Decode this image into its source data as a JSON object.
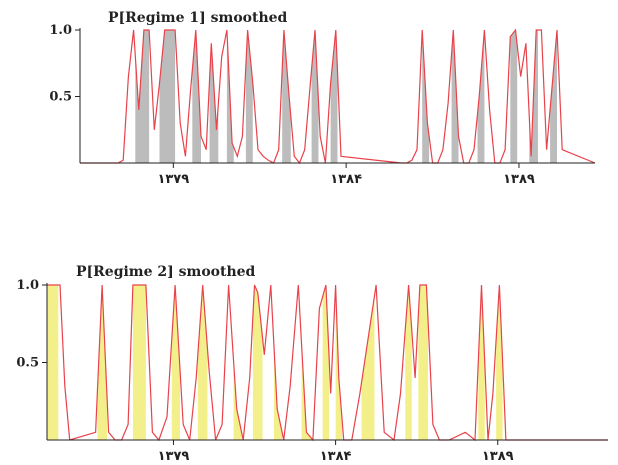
{
  "chart_data": [
    {
      "type": "line",
      "title": "P[Regime 1] smoothed",
      "yticks": [
        {
          "value": 1.0,
          "label": "1.0"
        },
        {
          "value": 0.5,
          "label": "0.5"
        }
      ],
      "xticks": [
        {
          "value": 1379,
          "label": "۱۳۷۹"
        },
        {
          "value": 1384,
          "label": "۱۳۸۴"
        },
        {
          "value": 1389,
          "label": "۱۳۸۹"
        }
      ],
      "xlim": [
        1376.3,
        1391.2
      ],
      "ylim": [
        0,
        1
      ],
      "series_color": "#e8424a",
      "fill_color": "#bcbcbc",
      "regimes": [
        [
          1377.9,
          1378.3
        ],
        [
          1378.6,
          1379.05
        ],
        [
          1379.55,
          1379.8
        ],
        [
          1380.05,
          1380.3
        ],
        [
          1380.55,
          1380.75
        ],
        [
          1381.1,
          1381.3
        ],
        [
          1382.15,
          1382.4
        ],
        [
          1383.0,
          1383.2
        ],
        [
          1383.55,
          1383.75
        ],
        [
          1386.2,
          1386.4
        ],
        [
          1387.05,
          1387.25
        ],
        [
          1387.8,
          1388.0
        ],
        [
          1388.75,
          1388.95
        ],
        [
          1389.3,
          1389.55
        ],
        [
          1389.9,
          1390.1
        ]
      ],
      "x": [
        1376.3,
        1377.4,
        1377.55,
        1377.7,
        1377.85,
        1378.0,
        1378.15,
        1378.3,
        1378.45,
        1378.6,
        1378.75,
        1378.9,
        1379.05,
        1379.2,
        1379.35,
        1379.5,
        1379.65,
        1379.8,
        1379.95,
        1380.1,
        1380.25,
        1380.4,
        1380.55,
        1380.7,
        1380.85,
        1381.0,
        1381.15,
        1381.3,
        1381.45,
        1381.6,
        1381.75,
        1381.9,
        1382.05,
        1382.2,
        1382.35,
        1382.5,
        1382.65,
        1382.8,
        1382.95,
        1383.1,
        1383.25,
        1383.4,
        1383.55,
        1383.7,
        1383.85,
        1385.6,
        1385.75,
        1385.9,
        1386.05,
        1386.2,
        1386.35,
        1386.5,
        1386.65,
        1386.8,
        1386.95,
        1387.1,
        1387.25,
        1387.4,
        1387.55,
        1387.7,
        1387.85,
        1388.0,
        1388.15,
        1388.3,
        1388.45,
        1388.6,
        1388.75,
        1388.9,
        1389.05,
        1389.2,
        1389.35,
        1389.5,
        1389.65,
        1389.8,
        1389.95,
        1390.1,
        1390.25,
        1391.2
      ],
      "y": [
        0,
        0,
        0.02,
        0.65,
        1.0,
        0.4,
        1.0,
        1.0,
        0.25,
        0.6,
        1.0,
        1.0,
        1.0,
        0.3,
        0.05,
        0.55,
        1.0,
        0.2,
        0.1,
        0.9,
        0.25,
        0.8,
        1.0,
        0.15,
        0.05,
        0.2,
        1.0,
        0.6,
        0.1,
        0.05,
        0.02,
        0.0,
        0.1,
        1.0,
        0.5,
        0.05,
        0.0,
        0.1,
        0.55,
        1.0,
        0.2,
        0.0,
        0.6,
        1.0,
        0.05,
        0.0,
        0.0,
        0.02,
        0.1,
        1.0,
        0.3,
        0.0,
        0.0,
        0.1,
        0.45,
        1.0,
        0.2,
        0.0,
        0.0,
        0.1,
        0.5,
        1.0,
        0.4,
        0.0,
        0.0,
        0.1,
        0.95,
        1.0,
        0.65,
        0.9,
        0.05,
        1.0,
        1.0,
        0.1,
        0.55,
        1.0,
        0.1,
        0.0
      ]
    },
    {
      "type": "line",
      "title": "P[Regime 2] smoothed",
      "yticks": [
        {
          "value": 1.0,
          "label": "1.0"
        },
        {
          "value": 0.5,
          "label": "0.5"
        }
      ],
      "xticks": [
        {
          "value": 1379,
          "label": "۱۳۷۹"
        },
        {
          "value": 1384,
          "label": "۱۳۸۴"
        },
        {
          "value": 1389,
          "label": "۱۳۸۹"
        }
      ],
      "xlim": [
        1375.1,
        1392.4
      ],
      "ylim": [
        0,
        1
      ],
      "series_color": "#e8424a",
      "fill_color": "#f3f08c",
      "regimes": [
        [
          1375.1,
          1375.45
        ],
        [
          1376.65,
          1376.95
        ],
        [
          1377.75,
          1378.15
        ],
        [
          1378.95,
          1379.2
        ],
        [
          1379.75,
          1380.05
        ],
        [
          1380.85,
          1381.1
        ],
        [
          1381.45,
          1381.75
        ],
        [
          1382.1,
          1382.35
        ],
        [
          1382.95,
          1383.25
        ],
        [
          1383.6,
          1383.8
        ],
        [
          1384.0,
          1384.2
        ],
        [
          1384.8,
          1385.2
        ],
        [
          1386.15,
          1386.35
        ],
        [
          1386.55,
          1386.85
        ],
        [
          1388.4,
          1388.6
        ],
        [
          1388.95,
          1389.15
        ]
      ],
      "x": [
        1375.1,
        1375.5,
        1375.65,
        1375.8,
        1376.6,
        1376.8,
        1377.0,
        1377.2,
        1377.4,
        1377.6,
        1377.75,
        1378.15,
        1378.35,
        1378.55,
        1378.8,
        1379.05,
        1379.3,
        1379.5,
        1379.7,
        1379.9,
        1380.1,
        1380.3,
        1380.5,
        1380.7,
        1380.95,
        1381.15,
        1381.35,
        1381.5,
        1381.6,
        1381.8,
        1382.0,
        1382.2,
        1382.4,
        1382.6,
        1382.85,
        1383.1,
        1383.3,
        1383.5,
        1383.7,
        1383.85,
        1384.0,
        1384.1,
        1384.25,
        1384.5,
        1384.75,
        1385.25,
        1385.5,
        1385.8,
        1386.0,
        1386.25,
        1386.45,
        1386.6,
        1386.8,
        1387.0,
        1387.2,
        1387.5,
        1388.0,
        1388.3,
        1388.5,
        1388.7,
        1388.85,
        1389.05,
        1389.25,
        1389.5,
        1391.4,
        1392.4
      ],
      "y": [
        1.0,
        1.0,
        0.35,
        0.0,
        0.05,
        1.0,
        0.05,
        0.0,
        0.0,
        0.1,
        1.0,
        1.0,
        0.05,
        0.0,
        0.15,
        1.0,
        0.1,
        0.0,
        0.4,
        1.0,
        0.45,
        0.0,
        0.1,
        1.0,
        0.2,
        0.0,
        0.4,
        1.0,
        0.95,
        0.55,
        1.0,
        0.2,
        0.0,
        0.35,
        1.0,
        0.05,
        0.0,
        0.85,
        1.0,
        0.3,
        1.0,
        0.4,
        0.0,
        0.0,
        0.3,
        1.0,
        0.05,
        0.0,
        0.3,
        1.0,
        0.4,
        1.0,
        1.0,
        0.1,
        0.0,
        0.0,
        0.05,
        0.0,
        1.0,
        0.0,
        0.3,
        1.0,
        0.0,
        0.0,
        0.0,
        0.0
      ]
    }
  ]
}
